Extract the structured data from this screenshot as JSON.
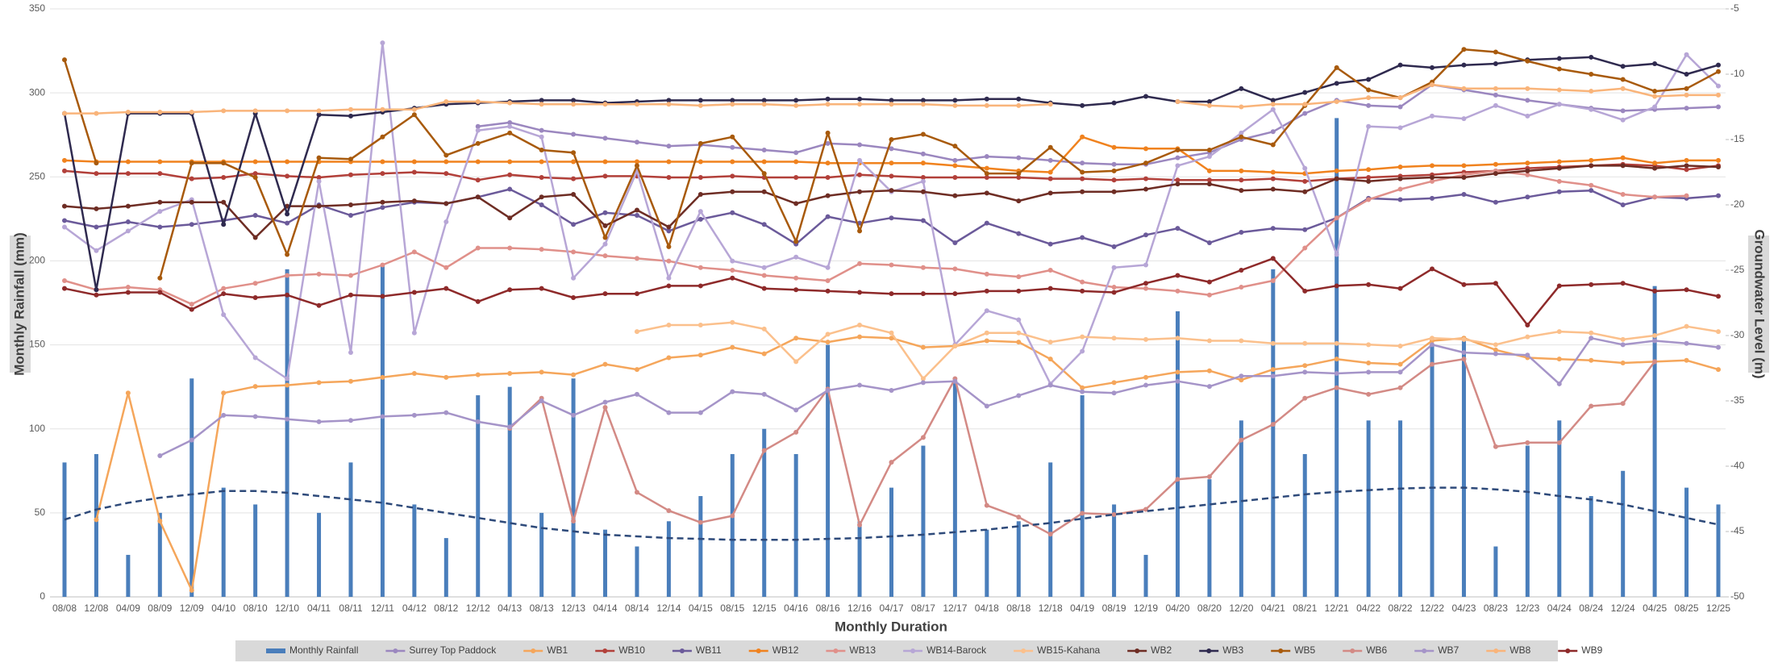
{
  "chart_data": {
    "type": "combo",
    "x_title": "Monthly Duration",
    "y_title": "Monthly Rainfall (mm)",
    "y2_title": "Groundwater Level (m)",
    "ylim": [
      0,
      350
    ],
    "yticks": [
      0,
      50,
      100,
      150,
      200,
      250,
      300,
      350
    ],
    "y2lim": [
      -50,
      -5
    ],
    "y2ticks": [
      -50,
      -45,
      -40,
      -35,
      -30,
      -25,
      -20,
      -15,
      -10,
      -5
    ],
    "grid": true,
    "legend": "bottom",
    "categories": [
      "08/08",
      "12/08",
      "04/09",
      "08/09",
      "12/09",
      "04/10",
      "08/10",
      "12/10",
      "04/11",
      "08/11",
      "12/11",
      "04/12",
      "08/12",
      "12/12",
      "04/13",
      "08/13",
      "12/13",
      "04/14",
      "08/14",
      "12/14",
      "04/15",
      "08/15",
      "12/15",
      "04/16",
      "08/16",
      "12/16",
      "04/17",
      "08/17",
      "12/17",
      "04/18",
      "08/18",
      "12/18",
      "04/19",
      "08/19",
      "12/19",
      "04/20",
      "08/20",
      "12/20",
      "04/21",
      "08/21",
      "12/21",
      "04/22",
      "08/22",
      "12/22",
      "04/23",
      "08/23",
      "12/23",
      "04/24",
      "08/24",
      "12/24",
      "04/25",
      "08/25",
      "12/25"
    ],
    "series": [
      {
        "name": "Monthly Rainfall",
        "type": "bar",
        "color": "#4a7ebb",
        "values": [
          80,
          85,
          25,
          50,
          130,
          65,
          55,
          195,
          50,
          80,
          197,
          55,
          35,
          120,
          125,
          50,
          130,
          40,
          30,
          45,
          60,
          85,
          100,
          85,
          150,
          45,
          65,
          90,
          130,
          40,
          45,
          80,
          120,
          55,
          25,
          170,
          70,
          105,
          195,
          85,
          285,
          105,
          105,
          150,
          155,
          30,
          90,
          105,
          60,
          75,
          185,
          65,
          55
        ]
      },
      {
        "name": "Surrey Top Paddock",
        "type": "line",
        "axis": "y2",
        "color": "#9b87bf",
        "values": [
          null,
          null,
          null,
          null,
          null,
          null,
          null,
          null,
          null,
          null,
          null,
          null,
          null,
          -14.0,
          -13.7,
          -14.3,
          -14.6,
          -14.9,
          -15.2,
          -15.5,
          -15.4,
          -15.6,
          -15.8,
          -16.0,
          -15.3,
          -15.4,
          -15.7,
          -16.1,
          -16.6,
          -16.3,
          -16.4,
          -16.6,
          -16.8,
          -16.9,
          -16.9,
          -16.4,
          -16.0,
          -15.0,
          -14.4,
          -13.0,
          -12.0,
          -12.4,
          -12.5,
          -10.8,
          -11.2,
          -11.6,
          -12.0,
          -12.3,
          -12.6,
          -12.8,
          -12.7,
          -12.6,
          -12.5
        ]
      },
      {
        "name": "WB1",
        "type": "line",
        "axis": "y2",
        "color": "#f5a65b",
        "values": [
          null,
          -44.1,
          -34.4,
          -44.2,
          -49.5,
          -34.4,
          -33.9,
          -33.8,
          -33.6,
          -33.5,
          -33.2,
          -32.9,
          -33.2,
          -33.0,
          -32.9,
          -32.8,
          -33.0,
          -32.2,
          -32.6,
          -31.7,
          -31.5,
          -30.9,
          -31.4,
          -30.2,
          -30.5,
          -30.1,
          -30.2,
          -30.9,
          -30.8,
          -30.4,
          -30.5,
          -31.8,
          -34.0,
          -33.6,
          -33.2,
          -32.8,
          -32.7,
          -33.4,
          -32.6,
          -32.3,
          -31.8,
          -32.1,
          -32.2,
          -30.4,
          -30.2,
          -31.1,
          -31.7,
          -31.8,
          -31.9,
          -32.1,
          -32.0,
          -31.9,
          -32.6
        ]
      },
      {
        "name": "WB10",
        "type": "line",
        "axis": "y2",
        "color": "#b2403a",
        "values": [
          -17.4,
          -17.6,
          -17.6,
          -17.6,
          -18.0,
          -17.9,
          -17.6,
          -17.8,
          -17.9,
          -17.7,
          -17.6,
          -17.5,
          -17.6,
          -18.1,
          -17.7,
          -17.9,
          -18.0,
          -17.8,
          -17.8,
          -17.9,
          -17.9,
          -17.8,
          -17.9,
          -17.9,
          -17.9,
          -17.7,
          -17.8,
          -17.9,
          -17.9,
          -17.9,
          -17.9,
          -18.0,
          -18.0,
          -18.1,
          -18.0,
          -18.1,
          -18.1,
          -18.1,
          -18.0,
          -18.2,
          -18.0,
          -17.9,
          -17.8,
          -17.7,
          -17.5,
          -17.4,
          -17.2,
          -17.1,
          -17.0,
          -16.9,
          -17.0,
          -17.3,
          -17.0
        ]
      },
      {
        "name": "WB11",
        "type": "line",
        "axis": "y2",
        "color": "#6b5a9a",
        "values": [
          -21.2,
          -21.7,
          -21.3,
          -21.7,
          -21.5,
          -21.2,
          -20.8,
          -21.4,
          -20.0,
          -20.8,
          -20.2,
          -19.8,
          -19.9,
          -19.4,
          -18.8,
          -20.0,
          -21.5,
          -20.6,
          -20.8,
          -22.0,
          -21.1,
          -20.6,
          -21.5,
          -23.0,
          -20.9,
          -21.4,
          -21.0,
          -21.2,
          -22.9,
          -21.4,
          -22.2,
          -23.0,
          -22.5,
          -23.2,
          -22.3,
          -21.8,
          -22.9,
          -22.1,
          -21.8,
          -21.9,
          -21.0,
          -19.5,
          -19.6,
          -19.5,
          -19.2,
          -19.8,
          -19.4,
          -19.0,
          -18.9,
          -20.0,
          -19.4,
          -19.5,
          -19.3
        ]
      },
      {
        "name": "WB12",
        "type": "line",
        "axis": "y2",
        "color": "#f0821e",
        "values": [
          -16.6,
          -16.7,
          -16.7,
          -16.7,
          -16.7,
          -16.7,
          -16.7,
          -16.7,
          -16.7,
          -16.7,
          -16.7,
          -16.7,
          -16.7,
          -16.7,
          -16.7,
          -16.7,
          -16.7,
          -16.7,
          -16.7,
          -16.7,
          -16.7,
          -16.7,
          -16.7,
          -16.7,
          -16.8,
          -16.8,
          -16.8,
          -16.8,
          -17.0,
          -17.2,
          -17.4,
          -17.5,
          -14.8,
          -15.6,
          -15.7,
          -15.7,
          -17.4,
          -17.4,
          -17.5,
          -17.6,
          -17.4,
          -17.3,
          -17.1,
          -17.0,
          -17.0,
          -16.9,
          -16.8,
          -16.7,
          -16.6,
          -16.4,
          -16.8,
          -16.6,
          -16.6
        ]
      },
      {
        "name": "WB13",
        "type": "line",
        "axis": "y2",
        "color": "#e0908a",
        "values": [
          -25.8,
          -26.5,
          -26.3,
          -26.5,
          -27.6,
          -26.4,
          -26.0,
          -25.4,
          -25.3,
          -25.4,
          -24.6,
          -23.6,
          -24.8,
          -23.3,
          -23.3,
          -23.4,
          -23.6,
          -23.9,
          -24.1,
          -24.3,
          -24.8,
          -25.0,
          -25.4,
          -25.6,
          -25.8,
          -24.5,
          -24.6,
          -24.8,
          -24.9,
          -25.3,
          -25.5,
          -25.0,
          -25.9,
          -26.3,
          -26.4,
          -26.6,
          -26.9,
          -26.3,
          -25.8,
          -23.3,
          -21.0,
          -19.6,
          -18.8,
          -18.2,
          -17.7,
          -17.4,
          -17.7,
          -18.2,
          -18.5,
          -19.2,
          -19.4,
          -19.3,
          null
        ]
      },
      {
        "name": "WB14-Barock",
        "type": "line",
        "axis": "y2",
        "color": "#b7a6d6",
        "values": [
          -21.7,
          -23.5,
          -22.0,
          -20.5,
          -19.6,
          -28.4,
          -31.7,
          -33.3,
          -18.2,
          -31.3,
          -7.6,
          -29.8,
          -21.3,
          -14.3,
          -14.0,
          -14.8,
          -25.6,
          -23.0,
          -17.4,
          -25.6,
          -20.5,
          -24.3,
          -24.8,
          -24.0,
          -24.8,
          -16.6,
          -19.0,
          -18.2,
          -30.7,
          -28.1,
          -28.8,
          -33.7,
          -31.2,
          -24.8,
          -24.6,
          -17.0,
          -16.3,
          -14.5,
          -12.7,
          -17.2,
          -23.8,
          -14.0,
          -14.1,
          -13.2,
          -13.4,
          -12.4,
          -13.2,
          -12.3,
          -12.7,
          -13.5,
          -12.5,
          -8.5,
          -10.9
        ]
      },
      {
        "name": "WB15-Kahana",
        "type": "line",
        "axis": "y2",
        "color": "#fbc08c",
        "values": [
          null,
          null,
          null,
          null,
          null,
          null,
          null,
          null,
          null,
          null,
          null,
          null,
          null,
          null,
          null,
          null,
          null,
          null,
          -29.7,
          -29.2,
          -29.2,
          -29.0,
          -29.5,
          -32.0,
          -29.9,
          -29.2,
          -29.8,
          -33.3,
          -30.8,
          -29.8,
          -29.8,
          -30.5,
          -30.1,
          -30.2,
          -30.3,
          -30.2,
          -30.4,
          -30.4,
          -30.6,
          -30.6,
          -30.6,
          -30.7,
          -30.8,
          -30.2,
          -30.3,
          -30.7,
          -30.1,
          -29.7,
          -29.8,
          -30.3,
          -30.0,
          -29.3,
          -29.7
        ]
      },
      {
        "name": "WB2",
        "type": "line",
        "axis": "y2",
        "color": "#6e2d24",
        "values": [
          -20.1,
          -20.3,
          -20.1,
          -19.8,
          -19.8,
          -19.8,
          -22.5,
          -20.1,
          -20.1,
          -20.0,
          -19.8,
          -19.7,
          -19.9,
          -19.4,
          -21.0,
          -19.4,
          -19.2,
          -21.6,
          -20.4,
          -21.7,
          -19.2,
          -19.0,
          -19.0,
          -19.9,
          -19.3,
          -19.0,
          -18.9,
          -19.0,
          -19.3,
          -19.1,
          -19.7,
          -19.1,
          -19.0,
          -19.0,
          -18.8,
          -18.4,
          -18.4,
          -18.9,
          -18.8,
          -19.0,
          -18.0,
          -18.2,
          -18.0,
          -17.9,
          -17.9,
          -17.6,
          -17.4,
          -17.2,
          -17.0,
          -17.0,
          -17.2,
          -17.0,
          -17.1
        ]
      },
      {
        "name": "WB3",
        "type": "line",
        "axis": "y2",
        "color": "#2f2a4f",
        "values": [
          -13.0,
          -26.5,
          -13.0,
          -13.0,
          -13.0,
          -21.5,
          -13.0,
          -20.7,
          -13.1,
          -13.2,
          -12.9,
          -12.6,
          -12.3,
          -12.2,
          -12.1,
          -12.0,
          -12.0,
          -12.2,
          -12.1,
          -12.0,
          -12.0,
          -12.0,
          -12.0,
          -12.0,
          -11.9,
          -11.9,
          -12.0,
          -12.0,
          -12.0,
          -11.9,
          -11.9,
          -12.2,
          -12.4,
          -12.2,
          -11.7,
          -12.1,
          -12.1,
          -11.1,
          -12.0,
          -11.4,
          -10.7,
          -10.4,
          -9.3,
          -9.5,
          -9.3,
          -9.2,
          -8.9,
          -8.8,
          -8.7,
          -9.4,
          -9.2,
          -10.0,
          -9.3
        ]
      },
      {
        "name": "WB5",
        "type": "line",
        "axis": "y2",
        "color": "#a85a0c",
        "values": [
          -8.9,
          -16.8,
          null,
          -25.6,
          -16.8,
          -16.8,
          -17.9,
          -23.8,
          -16.4,
          -16.5,
          -14.8,
          -13.1,
          -16.2,
          -15.3,
          -14.5,
          -15.8,
          -16.0,
          -22.5,
          -17.0,
          -23.2,
          -15.3,
          -14.8,
          -17.6,
          -22.8,
          -14.5,
          -22.0,
          -15.0,
          -14.6,
          -15.5,
          -17.6,
          -17.6,
          -15.6,
          -17.5,
          -17.4,
          -16.8,
          -15.8,
          -15.8,
          -14.8,
          -15.4,
          -12.4,
          -9.5,
          -11.2,
          -11.8,
          -10.6,
          -8.1,
          -8.3,
          -9.0,
          -9.6,
          -10.0,
          -10.4,
          -11.3,
          -11.1,
          -9.8
        ]
      },
      {
        "name": "WB6",
        "type": "line",
        "axis": "y2",
        "color": "#d38a85",
        "values": [
          null,
          null,
          null,
          null,
          null,
          null,
          null,
          null,
          null,
          null,
          null,
          null,
          null,
          null,
          -37.1,
          -34.8,
          -44.2,
          -35.5,
          -42.0,
          -43.4,
          -44.3,
          -43.8,
          -38.8,
          -37.4,
          -34.1,
          -44.5,
          -39.7,
          -37.8,
          -33.3,
          -43.0,
          -43.9,
          -45.2,
          -43.6,
          -43.7,
          -43.3,
          -41.0,
          -40.8,
          -38.0,
          -36.8,
          -34.8,
          -34.0,
          -34.5,
          -34.0,
          -32.2,
          -31.8,
          -38.5,
          -38.2,
          -38.2,
          -35.4,
          -35.2,
          -32.0,
          null,
          null
        ]
      },
      {
        "name": "WB7",
        "type": "line",
        "axis": "y2",
        "color": "#a594c8",
        "values": [
          null,
          null,
          null,
          -39.2,
          -38.0,
          -36.1,
          -36.2,
          -36.4,
          -36.6,
          -36.5,
          -36.2,
          -36.1,
          -35.9,
          -36.6,
          -37.0,
          -35.0,
          -36.1,
          -35.1,
          -34.5,
          -35.9,
          -35.9,
          -34.3,
          -34.5,
          -35.7,
          -34.2,
          -33.8,
          -34.2,
          -33.6,
          -33.5,
          -35.4,
          -34.6,
          -33.8,
          -34.3,
          -34.4,
          -33.8,
          -33.5,
          -33.9,
          -33.1,
          -33.1,
          -32.8,
          -32.9,
          -32.8,
          -32.8,
          -30.7,
          -31.3,
          -31.4,
          -31.5,
          -33.7,
          -30.2,
          -30.7,
          -30.4,
          -30.6,
          -30.9
        ]
      },
      {
        "name": "WB8",
        "type": "line",
        "axis": "y2",
        "color": "#f9b47a",
        "values": [
          -13.0,
          -13.0,
          -12.9,
          -12.9,
          -12.9,
          -12.8,
          -12.8,
          -12.8,
          -12.8,
          -12.7,
          -12.7,
          -12.7,
          -12.1,
          -12.1,
          -12.2,
          -12.3,
          -12.3,
          -12.3,
          -12.3,
          -12.3,
          -12.4,
          -12.3,
          -12.3,
          -12.4,
          -12.3,
          -12.3,
          -12.3,
          -12.3,
          -12.4,
          -12.4,
          -12.4,
          -12.3,
          null,
          null,
          null,
          -12.1,
          -12.4,
          -12.5,
          -12.3,
          -12.3,
          -12.1,
          -11.8,
          -11.8,
          -10.8,
          -11.1,
          -11.1,
          -11.1,
          -11.2,
          -11.3,
          -11.1,
          -11.7,
          -11.6,
          -11.6
        ]
      },
      {
        "name": "WB9",
        "type": "line",
        "axis": "y2",
        "color": "#8e2a2a",
        "values": [
          -26.4,
          -26.9,
          -26.7,
          -26.7,
          -28.0,
          -26.8,
          -27.1,
          -26.9,
          -27.7,
          -26.9,
          -27.0,
          -26.7,
          -26.4,
          -27.4,
          -26.5,
          -26.4,
          -27.1,
          -26.8,
          -26.8,
          -26.2,
          -26.2,
          -25.6,
          -26.4,
          -26.5,
          -26.6,
          -26.7,
          -26.8,
          -26.8,
          -26.8,
          -26.6,
          -26.6,
          -26.4,
          -26.6,
          -26.7,
          -26.0,
          -25.4,
          -25.9,
          -25.0,
          -24.1,
          -26.6,
          -26.2,
          -26.1,
          -26.4,
          -24.9,
          -26.1,
          -26.0,
          -29.2,
          -26.2,
          -26.1,
          -26.0,
          -26.6,
          -26.5,
          -27.0
        ]
      },
      {
        "type": "line",
        "dash": true,
        "markers": false,
        "color": "#2e4a7a",
        "values": [
          46,
          52,
          56,
          59,
          61,
          63,
          63,
          62,
          60,
          58,
          56,
          53,
          50,
          47,
          44,
          41,
          39,
          37,
          36,
          35,
          34.5,
          34,
          34,
          34,
          34.5,
          35,
          36,
          37,
          38.5,
          40,
          42,
          44,
          46.5,
          49,
          51,
          53,
          55,
          57,
          59,
          61,
          62.5,
          63.5,
          64.5,
          65,
          65,
          64,
          62.5,
          60,
          58,
          55,
          51,
          47,
          43
        ]
      }
    ]
  }
}
